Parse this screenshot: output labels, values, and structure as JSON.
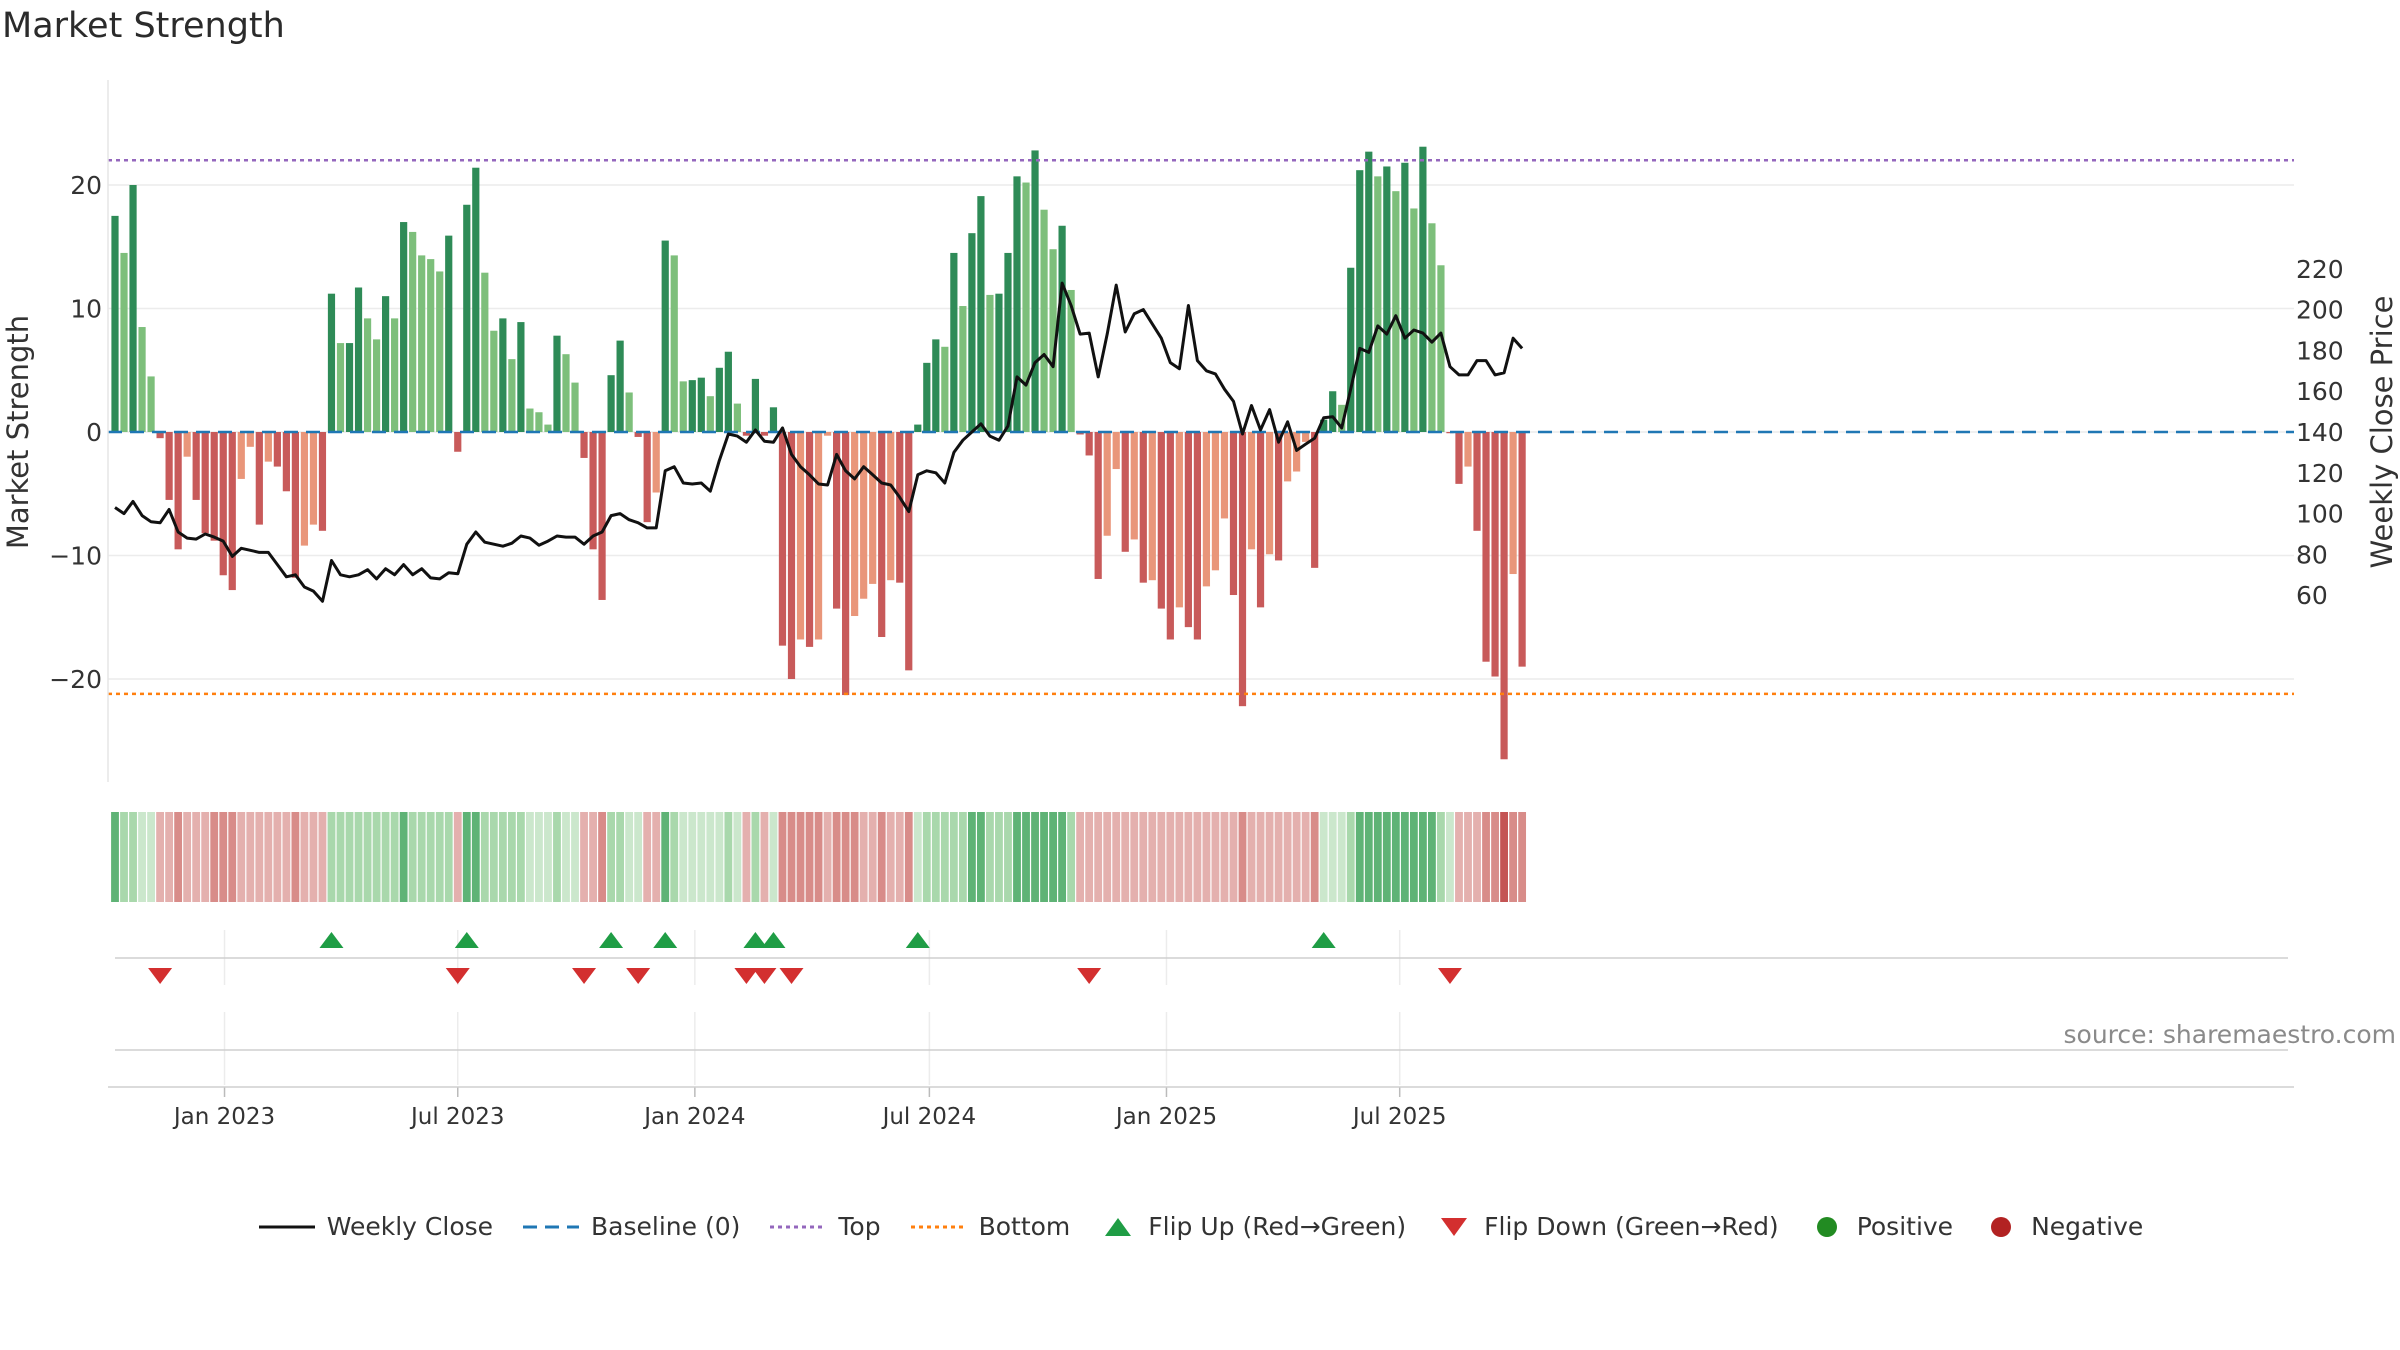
{
  "title": "Market Strength",
  "source": "source: sharemaestro.com",
  "colors": {
    "strong_green": "#2e8b57",
    "light_green": "#7dbf7b",
    "strong_red": "#c85a5a",
    "light_red": "#e9967a",
    "price_line": "#111111",
    "baseline": "#1f77b4",
    "top": "#9467bd",
    "bottom": "#ff7f0e",
    "flip_up": "#1f9d45",
    "flip_down": "#d32f2f",
    "positive": "#228b22",
    "negative": "#b22222"
  },
  "legend": [
    {
      "label": "Weekly Close",
      "icon": "solid-line"
    },
    {
      "label": "Baseline (0)",
      "icon": "dashed-line"
    },
    {
      "label": "Top",
      "icon": "dotted-line-purple"
    },
    {
      "label": "Bottom",
      "icon": "dotted-line-orange"
    },
    {
      "label": "Flip Up (Red→Green)",
      "icon": "triangle-up"
    },
    {
      "label": "Flip Down (Green→Red)",
      "icon": "triangle-down"
    },
    {
      "label": "Positive",
      "icon": "dot-green"
    },
    {
      "label": "Negative",
      "icon": "dot-red"
    }
  ],
  "chart_data": {
    "type": "bar",
    "ylabel_left": "Market Strength",
    "ylabel_right": "Weekly Close Price",
    "ylim_left": [
      -28,
      28
    ],
    "ylim_right": [
      55,
      225
    ],
    "yticks_left": [
      -20,
      -10,
      0,
      10,
      20
    ],
    "yticks_left_labels": [
      "−20",
      "−10",
      "0",
      "10",
      "20"
    ],
    "yticks_right": [
      60,
      80,
      100,
      120,
      140,
      160,
      180,
      200,
      220
    ],
    "top_level": 22,
    "bottom_level": -21.2,
    "baseline": 0,
    "x_start": "2022-10-08",
    "weeks": 155,
    "x_ticks": [
      {
        "label": "Jan 2023",
        "date": "2023-01-01"
      },
      {
        "label": "Jul 2023",
        "date": "2023-07-01"
      },
      {
        "label": "Jan 2024",
        "date": "2024-01-01"
      },
      {
        "label": "Jul 2024",
        "date": "2024-07-01"
      },
      {
        "label": "Jan 2025",
        "date": "2025-01-01"
      },
      {
        "label": "Jul 2025",
        "date": "2025-07-01"
      }
    ],
    "strength": [
      17.5,
      14.5,
      20,
      8.5,
      4.5,
      -0.5,
      -5.5,
      -9.5,
      -2,
      -5.5,
      -8.2,
      -8.8,
      -11.6,
      -12.8,
      -3.8,
      -1.2,
      -7.5,
      -2.4,
      -2.8,
      -4.8,
      -11.8,
      -9.2,
      -7.5,
      -8,
      11.2,
      7.2,
      7.2,
      11.7,
      9.2,
      7.5,
      11,
      9.2,
      17,
      16.2,
      14.3,
      14,
      13,
      15.9,
      -1.6,
      18.4,
      21.4,
      12.9,
      8.2,
      9.2,
      5.9,
      8.9,
      1.9,
      1.6,
      0.6,
      7.8,
      6.3,
      4,
      -2.1,
      -9.5,
      -13.6,
      4.6,
      7.4,
      3.2,
      -0.4,
      -7.3,
      -4.9,
      15.5,
      14.3,
      4.1,
      4.2,
      4.4,
      2.9,
      5.2,
      6.5,
      2.3,
      -0.3,
      4.3,
      -0.3,
      2,
      -17.3,
      -20,
      -16.8,
      -17.4,
      -16.8,
      -0.3,
      -14.3,
      -21.3,
      -14.9,
      -13.5,
      -12.3,
      -16.6,
      -12,
      -12.2,
      -19.3,
      0.6,
      5.6,
      7.5,
      6.9,
      14.5,
      10.2,
      16.1,
      19.1,
      11.1,
      11.2,
      14.5,
      20.7,
      20.2,
      22.8,
      18,
      14.8,
      16.7,
      11.5,
      -0.2,
      -1.9,
      -11.9,
      -8.4,
      -3,
      -9.7,
      -8.7,
      -12.2,
      -12,
      -14.3,
      -16.8,
      -14.2,
      -15.8,
      -16.8,
      -12.5,
      -11.2,
      -7,
      -13.2,
      -22.2,
      -9.5,
      -14.2,
      -9.9,
      -10.4,
      -4,
      -3.2,
      -0.8,
      -11,
      1,
      3.3,
      2.2,
      13.3,
      21.2,
      22.7,
      20.7,
      21.5,
      19.5,
      21.8,
      18.1,
      23.1,
      16.9,
      13.5,
      -0.1,
      -4.2,
      -2.8,
      -8,
      -18.6,
      -19.8,
      -26.5,
      -11.5,
      -19
    ],
    "close": [
      103,
      100,
      106,
      99,
      96,
      95.5,
      102,
      91,
      88,
      87.5,
      90,
      88.5,
      86.5,
      79,
      83,
      82,
      81,
      81,
      75,
      69,
      70,
      64,
      62,
      57,
      77,
      70,
      69,
      70,
      72.5,
      68,
      73,
      70,
      75,
      70,
      73,
      68.5,
      68,
      71,
      70.5,
      85,
      91,
      86,
      85,
      84,
      85.5,
      89,
      88,
      84.5,
      86.5,
      89,
      88.5,
      88.5,
      85,
      89,
      91,
      99,
      100,
      97,
      95.5,
      93,
      93,
      121,
      123,
      115,
      114.5,
      115,
      111,
      126,
      139,
      138,
      135,
      141,
      135.5,
      135,
      142,
      129,
      123,
      119,
      114.5,
      114,
      129,
      121,
      117,
      123,
      119,
      115,
      114,
      108,
      101,
      119,
      121,
      120,
      115,
      130,
      136,
      140,
      144,
      138,
      136,
      143,
      167,
      163,
      174,
      178,
      172,
      213,
      202,
      188,
      188.5,
      167,
      188,
      212,
      189,
      198,
      200,
      193,
      186,
      174,
      171,
      202,
      175,
      170,
      168.5,
      161,
      155,
      139,
      153,
      141,
      151,
      135,
      145,
      131,
      134,
      137,
      147,
      147.5,
      142,
      161,
      181,
      179,
      192,
      188,
      197,
      186,
      190,
      188.5,
      184,
      188.5,
      172,
      168,
      168,
      175,
      175,
      168,
      169,
      186,
      181
    ],
    "flip_up_weeks": [
      24,
      39,
      55,
      61,
      71,
      73,
      89,
      134
    ],
    "flip_down_weeks": [
      5,
      38,
      52,
      58,
      70,
      72,
      75,
      108,
      148
    ],
    "regime_shades": [
      2,
      1,
      1,
      0,
      0,
      -1,
      -1,
      -2,
      -1,
      -1,
      -1,
      -2,
      -2,
      -2,
      -1,
      -1,
      -1,
      -1,
      -1,
      -1,
      -2,
      -1,
      -1,
      -1,
      1,
      1,
      1,
      1,
      1,
      1,
      1,
      1,
      2,
      1,
      1,
      1,
      1,
      1,
      -1,
      2,
      2,
      1,
      1,
      1,
      1,
      1,
      0,
      0,
      0,
      1,
      0,
      0,
      -1,
      -1,
      -2,
      1,
      1,
      0,
      0,
      -1,
      -1,
      2,
      1,
      0,
      0,
      0,
      0,
      0,
      1,
      0,
      -1,
      1,
      -1,
      0,
      -2,
      -2,
      -2,
      -2,
      -2,
      -1,
      -2,
      -2,
      -2,
      -1,
      -1,
      -2,
      -1,
      -1,
      -2,
      0,
      1,
      1,
      1,
      1,
      1,
      2,
      2,
      1,
      1,
      1,
      2,
      2,
      2,
      2,
      2,
      2,
      1,
      -1,
      -1,
      -1,
      -1,
      -1,
      -1,
      -1,
      -1,
      -1,
      -1,
      -1,
      -1,
      -1,
      -1,
      -1,
      -1,
      -1,
      -1,
      -2,
      -1,
      -1,
      -1,
      -1,
      -1,
      -1,
      -1,
      -2,
      0,
      0,
      0,
      1,
      2,
      2,
      2,
      2,
      2,
      2,
      2,
      2,
      2,
      1,
      0,
      -1,
      -1,
      -1,
      -2,
      -2,
      -3,
      -2,
      -2
    ]
  }
}
